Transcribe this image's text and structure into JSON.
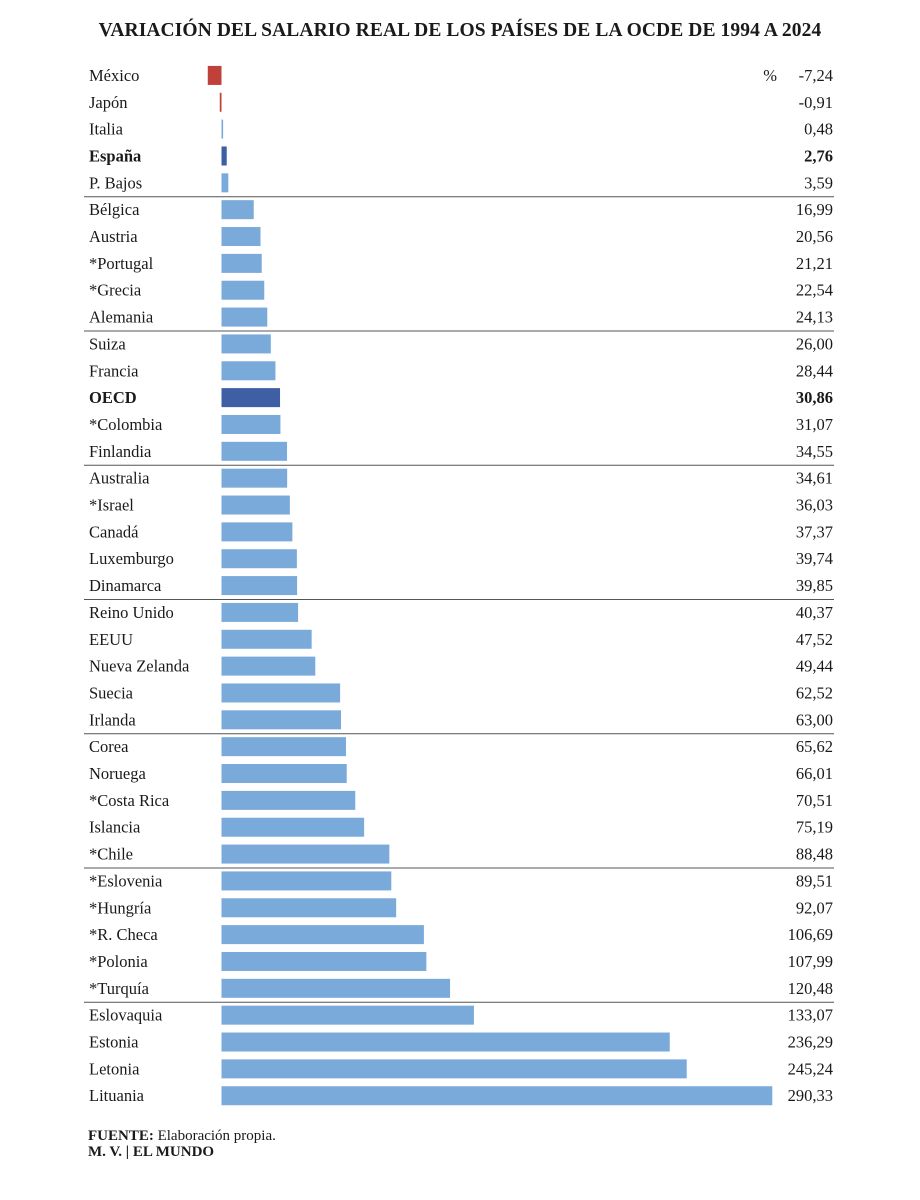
{
  "chart_data": {
    "type": "bar",
    "orientation": "horizontal",
    "title": "VARIACIÓN DEL SALARIO REAL DE LOS PAÍSES DE LA OCDE DE 1994 A 2024",
    "unit": "%",
    "categories": [
      "México",
      "Japón",
      "Italia",
      "España",
      "P. Bajos",
      "Bélgica",
      "Austria",
      "*Portugal",
      "*Grecia",
      "Alemania",
      "Suiza",
      "Francia",
      "OECD",
      "*Colombia",
      "Finlandia",
      "Australia",
      "*Israel",
      "Canadá",
      "Luxemburgo",
      "Dinamarca",
      "Reino Unido",
      "EEUU",
      "Nueva Zelanda",
      "Suecia",
      "Irlanda",
      "Corea",
      "Noruega",
      "*Costa Rica",
      "Islancia",
      "*Chile",
      "*Eslovenia",
      "*Hungría",
      "*R. Checa",
      "*Polonia",
      "*Turquía",
      "Eslovaquia",
      "Estonia",
      "Letonia",
      "Lituania"
    ],
    "values": [
      -7.24,
      -0.91,
      0.48,
      2.76,
      3.59,
      16.99,
      20.56,
      21.21,
      22.54,
      24.13,
      26.0,
      28.44,
      30.86,
      31.07,
      34.55,
      34.61,
      36.03,
      37.37,
      39.74,
      39.85,
      40.37,
      47.52,
      49.44,
      62.52,
      63.0,
      65.62,
      66.01,
      70.51,
      75.19,
      88.48,
      89.51,
      92.07,
      106.69,
      107.99,
      120.48,
      133.07,
      236.29,
      245.24,
      290.33
    ],
    "value_labels": [
      "-7,24",
      "-0,91",
      "0,48",
      "2,76",
      "3,59",
      "16,99",
      "20,56",
      "21,21",
      "22,54",
      "24,13",
      "26,00",
      "28,44",
      "30,86",
      "31,07",
      "34,55",
      "34,61",
      "36,03",
      "37,37",
      "39,74",
      "39,85",
      "40,37",
      "47,52",
      "49,44",
      "62,52",
      "63,00",
      "65,62",
      "66,01",
      "70,51",
      "75,19",
      "88,48",
      "89,51",
      "92,07",
      "106,69",
      "107,99",
      "120,48",
      "133,07",
      "236,29",
      "245,24",
      "290,33"
    ],
    "highlighted": [
      "España",
      "OECD"
    ],
    "group_size": 5,
    "colors": {
      "positive": "#7aaad9",
      "negative": "#c0403a",
      "highlight": "#3e5fa3",
      "divider": "#555555"
    }
  },
  "footer": {
    "source_label": "FUENTE:",
    "source_text": " Elaboración propia.",
    "credit": "M. V. | EL MUNDO"
  }
}
